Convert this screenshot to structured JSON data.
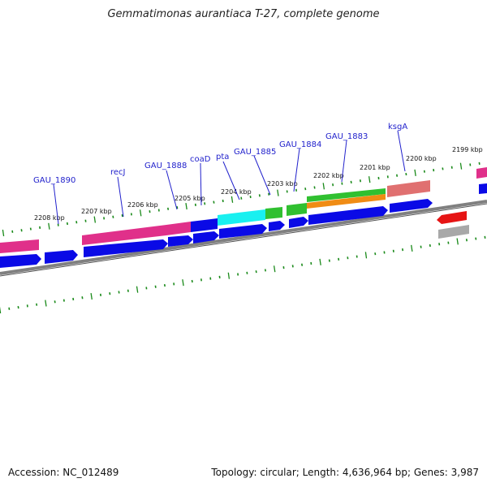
{
  "title": "Gemmatimonas aurantiaca T-27, complete genome",
  "footer": {
    "accession": "Accession: NC_012489",
    "summary": "Topology: circular; Length: 4,636,964 bp; Genes: 3,987"
  },
  "colors": {
    "backbone": "#808080",
    "tick": "#1a8a1a",
    "gene_label": "#2222cc",
    "cds_blue": "#0a0ae6",
    "cog_magenta": "#e0308a",
    "cog_cyan": "#19f0f0",
    "cog_green": "#30c030",
    "cog_orange": "#f08c14",
    "cog_salmon": "#e07070",
    "cog_red": "#e61414",
    "cog_gray": "#a8a8a8"
  },
  "scale_labels": [
    "2208 kbp",
    "2207 kbp",
    "2206 kbp",
    "2205 kbp",
    "2204 kbp",
    "2203 kbp",
    "2202 kbp",
    "2201 kbp",
    "2200 kbp",
    "2199 kbp"
  ],
  "gene_labels": [
    "GAU_1890",
    "recJ",
    "GAU_1888",
    "coaD",
    "pta",
    "GAU_1885",
    "GAU_1884",
    "GAU_1883",
    "ksgA"
  ]
}
